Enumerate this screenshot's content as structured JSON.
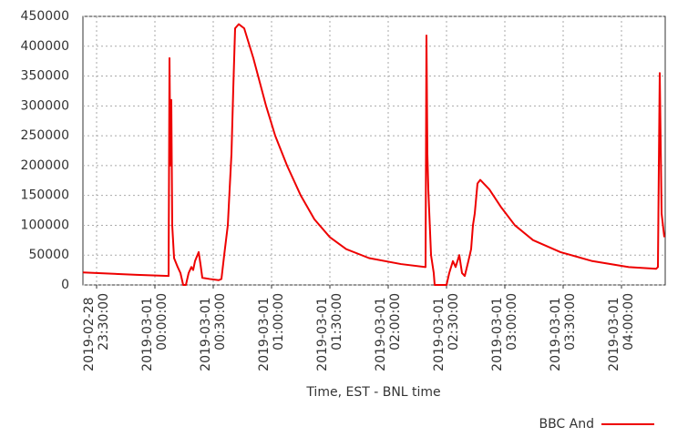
{
  "chart_data": {
    "type": "line",
    "xlabel": "Time, EST - BNL time",
    "xlim": [
      "2019-02-28 23:22:58",
      "2019-03-01 04:22:30"
    ],
    "xticks": [
      "2019-02-28 23:30:00",
      "2019-03-01 00:00:00",
      "2019-03-01 00:30:00",
      "2019-03-01 01:00:00",
      "2019-03-01 01:30:00",
      "2019-03-01 02:00:00",
      "2019-03-01 02:30:00",
      "2019-03-01 03:00:00",
      "2019-03-01 03:30:00",
      "2019-03-01 04:00:00"
    ],
    "ylim": [
      0,
      450000
    ],
    "yticks": [
      0,
      50000,
      100000,
      150000,
      200000,
      250000,
      300000,
      350000,
      400000,
      450000
    ],
    "grid": true,
    "legend": "bottom-right",
    "x": [
      "2019-02-28 23:22:58",
      "2019-02-28 23:50:38",
      "2019-03-01 00:07:02",
      "2019-03-01 00:07:30",
      "2019-03-01 00:07:58",
      "2019-03-01 00:08:26",
      "2019-03-01 00:08:54",
      "2019-03-01 00:09:51",
      "2019-03-01 00:11:43",
      "2019-03-01 00:13:08",
      "2019-03-01 00:14:32",
      "2019-03-01 00:15:56",
      "2019-03-01 00:17:21",
      "2019-03-01 00:18:45",
      "2019-03-01 00:19:41",
      "2019-03-01 00:20:38",
      "2019-03-01 00:22:30",
      "2019-03-01 00:23:26",
      "2019-03-01 00:24:23",
      "2019-03-01 00:28:08",
      "2019-03-01 00:32:49",
      "2019-03-01 00:34:13",
      "2019-03-01 00:35:38",
      "2019-03-01 00:37:30",
      "2019-03-01 00:38:26",
      "2019-03-01 00:39:23",
      "2019-03-01 00:40:19",
      "2019-03-01 00:41:15",
      "2019-03-01 00:43:08",
      "2019-03-01 00:45:56",
      "2019-03-01 00:50:38",
      "2019-03-01 00:57:11",
      "2019-03-01 01:01:53",
      "2019-03-01 01:07:58",
      "2019-03-01 01:15:00",
      "2019-03-01 01:22:02",
      "2019-03-01 01:30:00",
      "2019-03-01 01:38:26",
      "2019-03-01 01:50:09",
      "2019-03-01 02:06:34",
      "2019-03-01 02:19:13",
      "2019-03-01 02:19:41",
      "2019-03-01 02:20:09",
      "2019-03-01 02:20:38",
      "2019-03-01 02:22:02",
      "2019-03-01 02:23:26",
      "2019-03-01 02:23:54",
      "2019-03-01 02:30:00",
      "2019-03-01 02:31:24",
      "2019-03-01 02:33:17",
      "2019-03-01 02:34:41",
      "2019-03-01 02:36:34",
      "2019-03-01 02:37:58",
      "2019-03-01 02:39:23",
      "2019-03-01 02:41:15",
      "2019-03-01 02:42:39",
      "2019-03-01 02:43:36",
      "2019-03-01 02:44:32",
      "2019-03-01 02:45:56",
      "2019-03-01 02:47:21",
      "2019-03-01 02:52:02",
      "2019-03-01 02:58:08",
      "2019-03-01 03:05:09",
      "2019-03-01 03:14:32",
      "2019-03-01 03:28:36",
      "2019-03-01 03:45:00",
      "2019-03-01 04:03:45",
      "2019-03-01 04:17:49",
      "2019-03-01 04:18:45",
      "2019-03-01 04:19:13",
      "2019-03-01 04:19:41",
      "2019-03-01 04:20:38",
      "2019-03-01 04:22:02"
    ],
    "series": [
      {
        "name": "BBC And",
        "color": "#ee0000",
        "values": [
          21000,
          17000,
          15000,
          380000,
          200000,
          310000,
          100000,
          45000,
          30000,
          20000,
          0,
          0,
          20000,
          30000,
          25000,
          40000,
          55000,
          35000,
          12000,
          10000,
          8000,
          10000,
          50000,
          100000,
          160000,
          220000,
          330000,
          430000,
          437000,
          430000,
          380000,
          300000,
          250000,
          200000,
          150000,
          110000,
          80000,
          60000,
          45000,
          35000,
          30000,
          418000,
          220000,
          160000,
          50000,
          20000,
          0,
          0,
          20000,
          40000,
          30000,
          50000,
          20000,
          15000,
          40000,
          60000,
          100000,
          120000,
          170000,
          176000,
          160000,
          130000,
          100000,
          75000,
          55000,
          40000,
          30000,
          27000,
          30000,
          200000,
          355000,
          120000,
          80000
        ]
      }
    ]
  }
}
